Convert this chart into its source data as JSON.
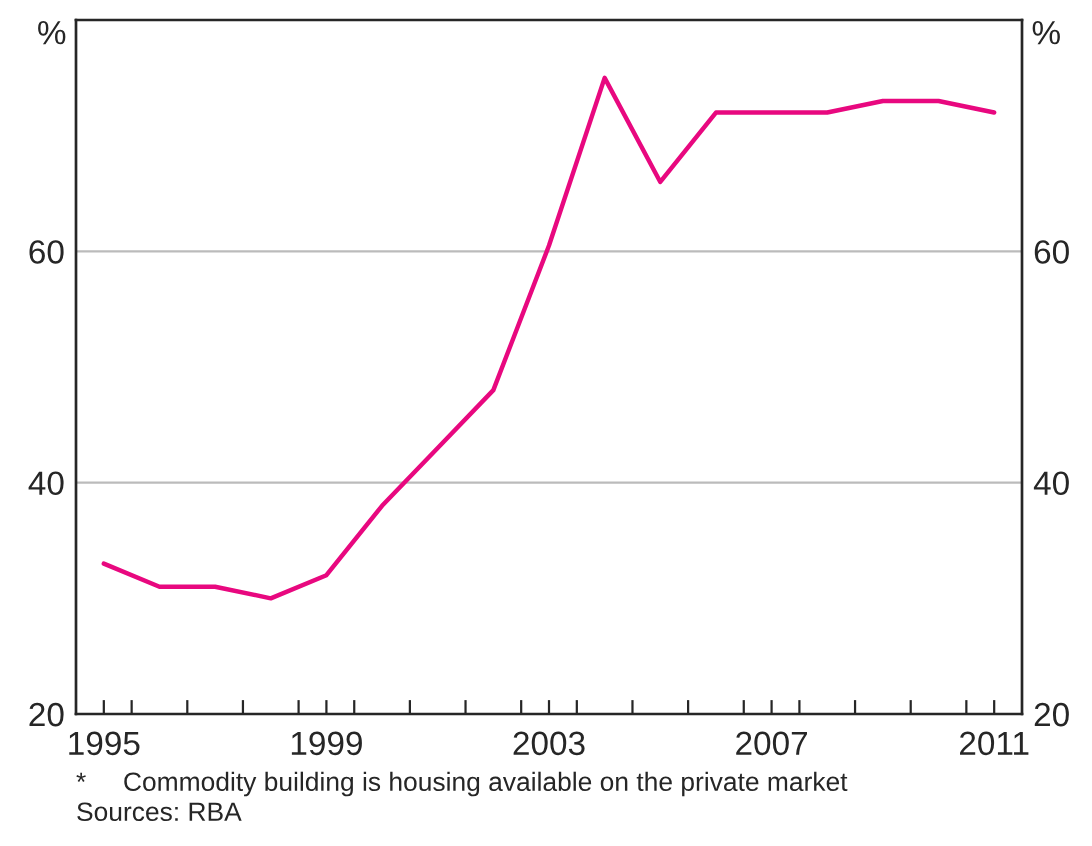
{
  "chart_data": {
    "type": "line",
    "x": [
      1995,
      1996,
      1997,
      1998,
      1999,
      2000,
      2001,
      2002,
      2003,
      2004,
      2005,
      2006,
      2007,
      2008,
      2009,
      2010,
      2011
    ],
    "series": [
      {
        "color": "#e8087f",
        "values": [
          33,
          31,
          31,
          30,
          32,
          38,
          43,
          48,
          60.5,
          75,
          66,
          72,
          72,
          72,
          73,
          73,
          72
        ]
      }
    ],
    "xlim": [
      1994.5,
      2011.5
    ],
    "xticks": [
      {
        "value": 1995,
        "label": "1995"
      },
      {
        "value": 1995.5,
        "label": null
      },
      {
        "value": 1996.5,
        "label": null
      },
      {
        "value": 1997.5,
        "label": null
      },
      {
        "value": 1998.5,
        "label": null
      },
      {
        "value": 1999,
        "label": "1999"
      },
      {
        "value": 1999.5,
        "label": null
      },
      {
        "value": 2000.5,
        "label": null
      },
      {
        "value": 2001.5,
        "label": null
      },
      {
        "value": 2002.5,
        "label": null
      },
      {
        "value": 2003,
        "label": "2003"
      },
      {
        "value": 2003.5,
        "label": null
      },
      {
        "value": 2004.5,
        "label": null
      },
      {
        "value": 2005.5,
        "label": null
      },
      {
        "value": 2006.5,
        "label": null
      },
      {
        "value": 2007,
        "label": "2007"
      },
      {
        "value": 2007.5,
        "label": null
      },
      {
        "value": 2008.5,
        "label": null
      },
      {
        "value": 2009.5,
        "label": null
      },
      {
        "value": 2010.5,
        "label": null
      },
      {
        "value": 2011,
        "label": "2011"
      }
    ],
    "ylim": [
      20,
      80
    ],
    "yticks": [
      20,
      40,
      60
    ],
    "y2lim": [
      20,
      80
    ],
    "y2ticks": [
      20,
      40,
      60
    ],
    "ylabel": "%",
    "y2label": "%",
    "grid": "y",
    "line_style": "solid",
    "annotations": [
      "*     Commodity building is housing available on the private market",
      "Sources: RBA"
    ]
  }
}
